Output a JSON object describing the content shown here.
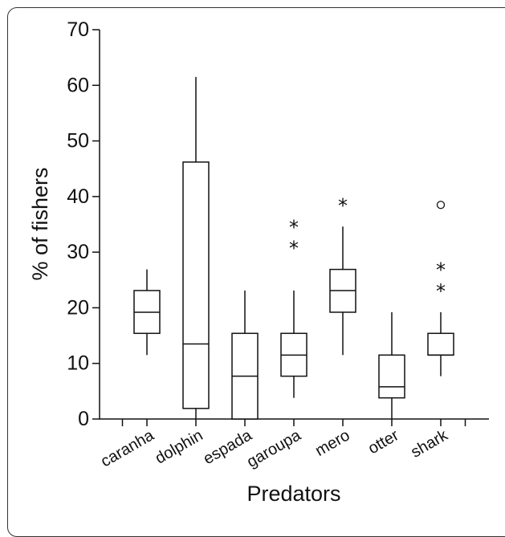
{
  "chart_data": {
    "type": "box",
    "xlabel": "Predators",
    "ylabel": "% of fishers",
    "ylim": [
      0,
      70
    ],
    "yticks": [
      0,
      10,
      20,
      30,
      40,
      50,
      60,
      70
    ],
    "categories": [
      "caranha",
      "dolphin",
      "espada",
      "garoupa",
      "mero",
      "otter",
      "shark"
    ],
    "boxes": [
      {
        "category": "caranha",
        "min": 11.5,
        "q1": 15.4,
        "median": 19.2,
        "q3": 23.1,
        "max": 26.9,
        "outliers": []
      },
      {
        "category": "dolphin",
        "min": 0,
        "q1": 1.9,
        "median": 13.5,
        "q3": 46.2,
        "max": 61.5,
        "outliers": []
      },
      {
        "category": "espada",
        "min": 0,
        "q1": 0,
        "median": 7.7,
        "q3": 15.4,
        "max": 23.1,
        "outliers": []
      },
      {
        "category": "garoupa",
        "min": 3.8,
        "q1": 7.7,
        "median": 11.5,
        "q3": 15.4,
        "max": 23.1,
        "outliers": [
          {
            "value": 30.8,
            "marker": "*"
          },
          {
            "value": 34.6,
            "marker": "*"
          }
        ]
      },
      {
        "category": "mero",
        "min": 11.5,
        "q1": 19.2,
        "median": 23.1,
        "q3": 26.9,
        "max": 34.6,
        "outliers": [
          {
            "value": 38.5,
            "marker": "*"
          }
        ]
      },
      {
        "category": "otter",
        "min": 0,
        "q1": 3.8,
        "median": 5.8,
        "q3": 11.5,
        "max": 19.2,
        "outliers": []
      },
      {
        "category": "shark",
        "min": 7.7,
        "q1": 11.5,
        "median": 11.5,
        "q3": 15.4,
        "max": 19.2,
        "outliers": [
          {
            "value": 23.1,
            "marker": "*"
          },
          {
            "value": 26.9,
            "marker": "*"
          },
          {
            "value": 38.5,
            "marker": "o"
          }
        ]
      }
    ],
    "grid": false,
    "legend": false
  }
}
